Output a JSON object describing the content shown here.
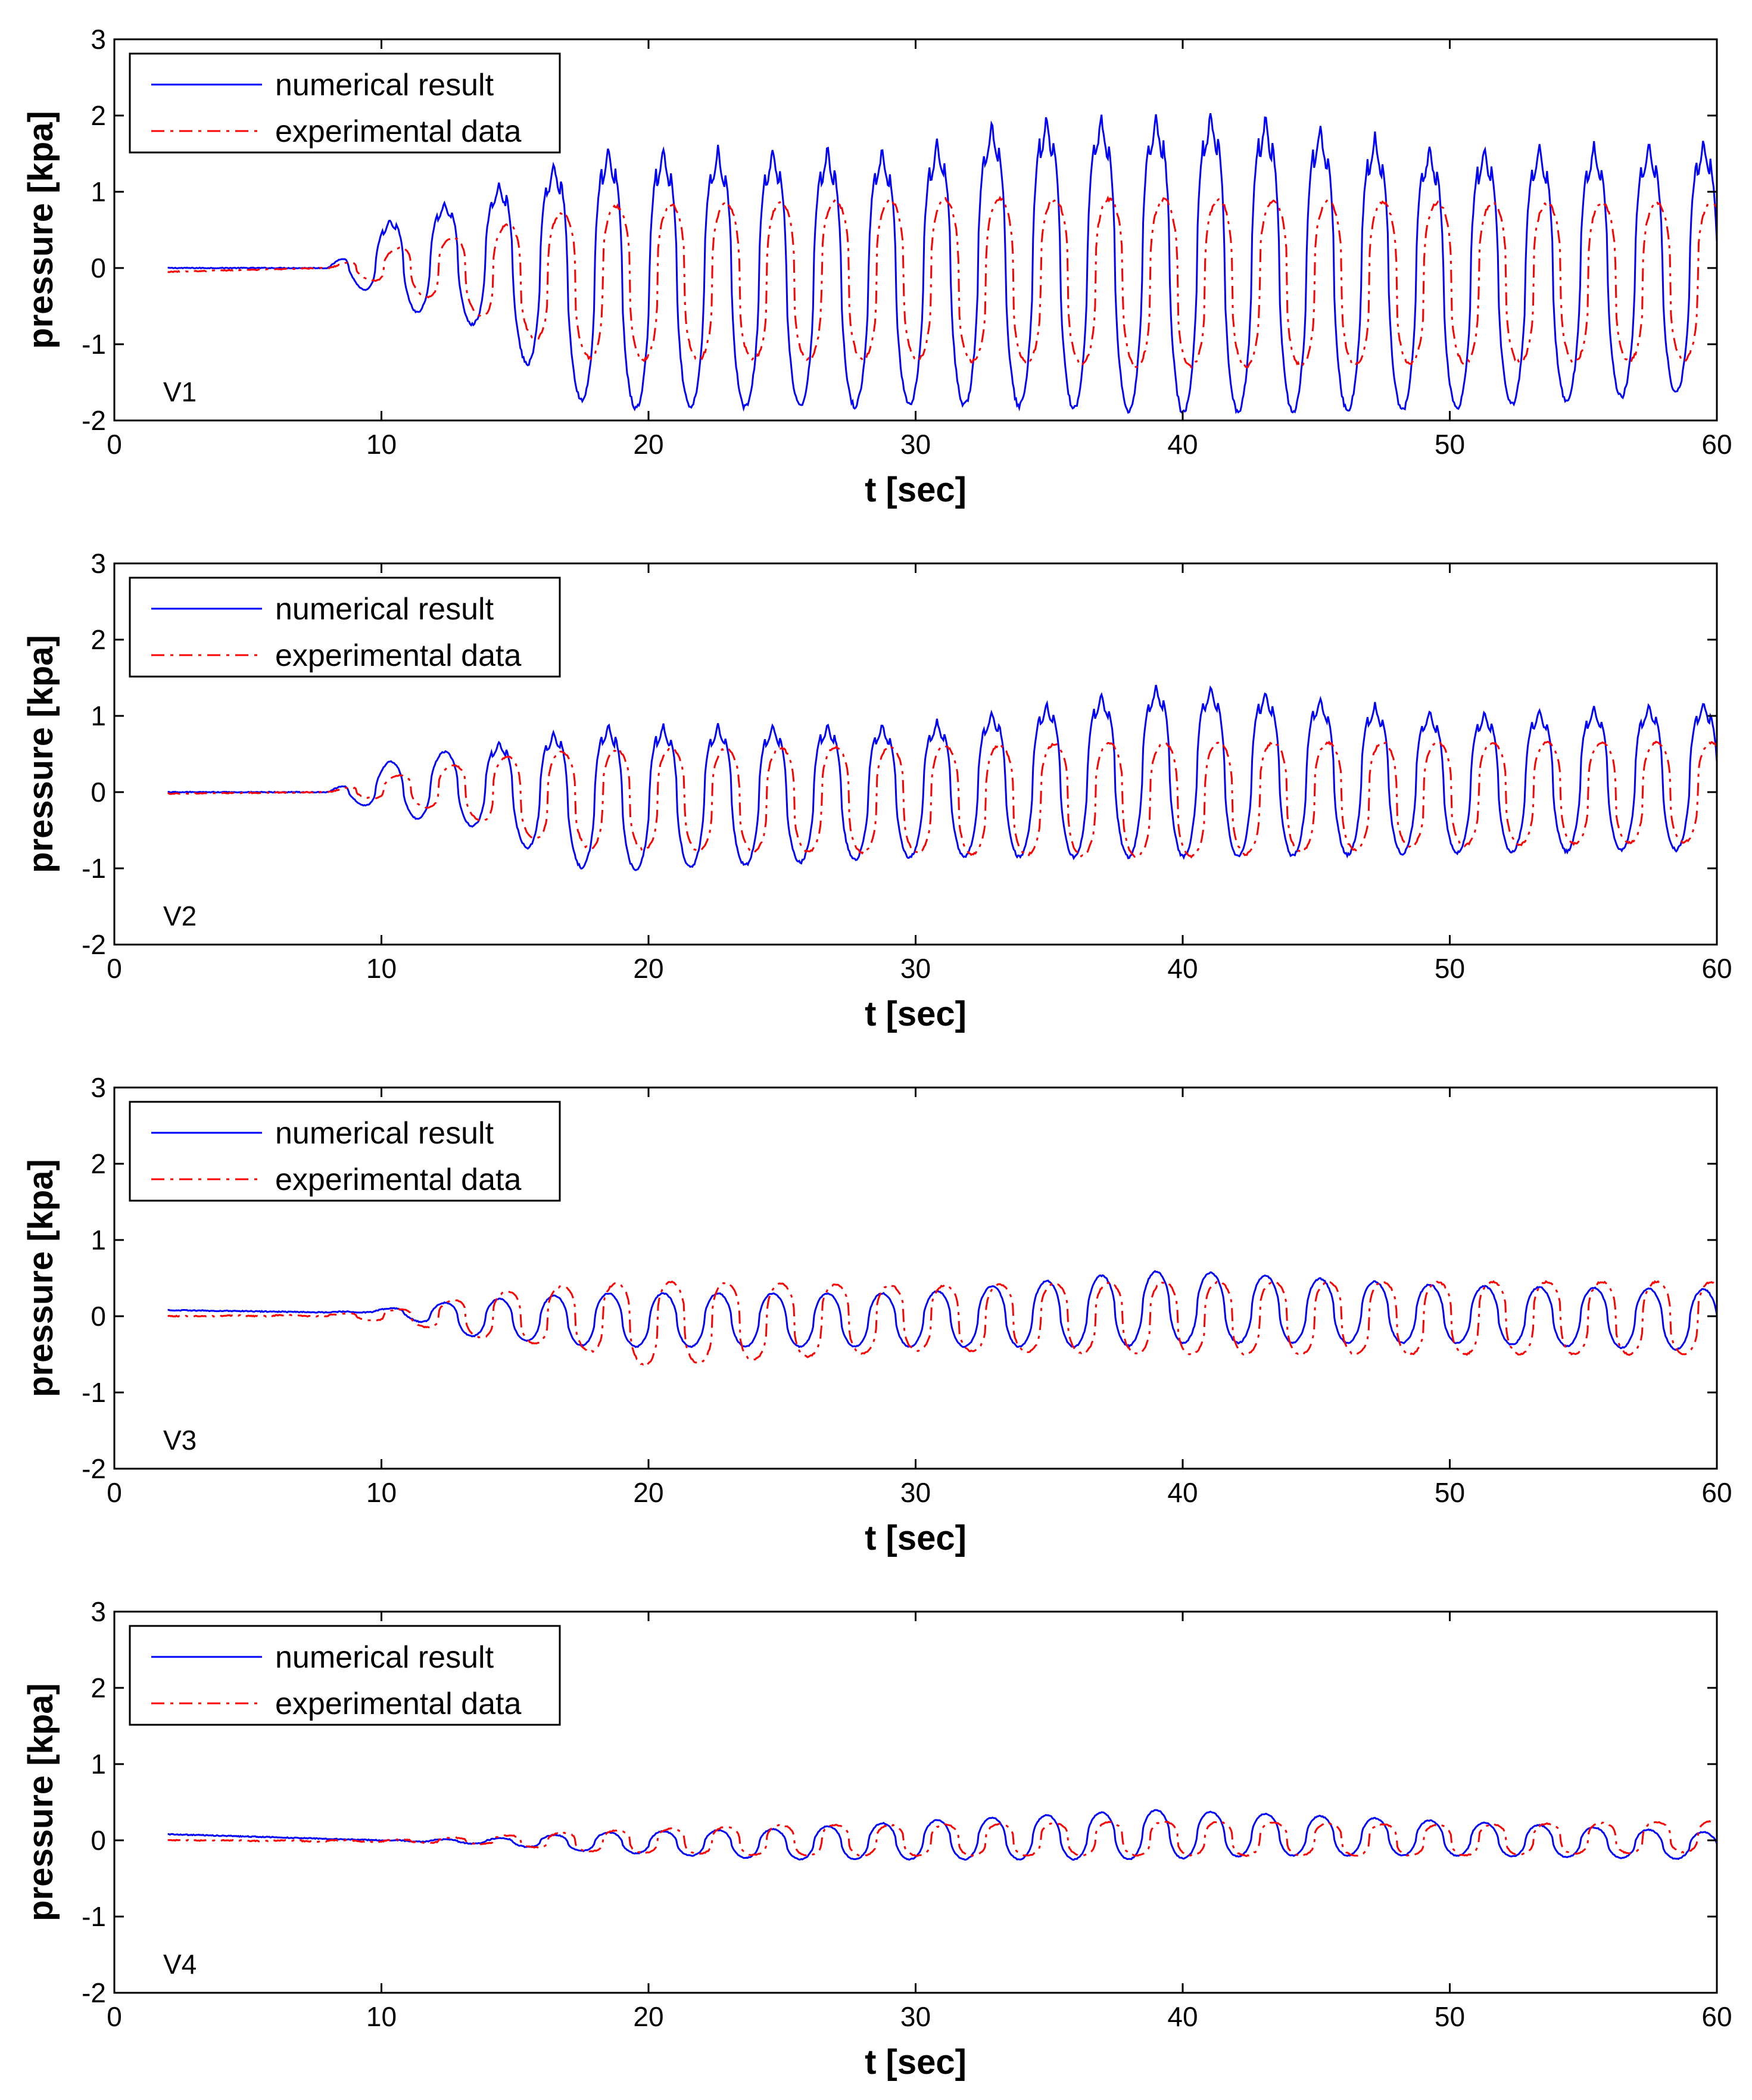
{
  "chart_data": [
    {
      "type": "line",
      "panel_label": "V1",
      "xlabel": "t [sec]",
      "ylabel": "pressure [kpa]",
      "xlim": [
        0,
        60
      ],
      "ylim": [
        -2,
        3
      ],
      "xticks": [
        0,
        10,
        20,
        30,
        40,
        50,
        60
      ],
      "yticks": [
        -2,
        -1,
        0,
        1,
        2,
        3
      ],
      "grid": false,
      "legend_position": "top-left",
      "series": [
        {
          "name": "numerical result",
          "color": "#0000ff",
          "style": "solid",
          "t_start": 2,
          "t_end": 60,
          "period_s": 2.05,
          "description_values": {
            "baseline_until_s": 8,
            "first_peak": 0.65,
            "peak_t": 10.3,
            "trough_after_first": -0.5,
            "second_peak": 1.0,
            "steady_peak_range": [
              1.4,
              2.1
            ],
            "steady_trough_range": [
              -1.8,
              -1.9
            ]
          },
          "envelope": [
            [
              2,
              0,
              0
            ],
            [
              8,
              0,
              0
            ],
            [
              10.3,
              0.65,
              -0.5
            ],
            [
              13.5,
              1.0,
              -0.75
            ],
            [
              15.6,
              1.3,
              -1.3
            ],
            [
              18,
              1.6,
              -1.85
            ],
            [
              30,
              1.6,
              -1.8
            ],
            [
              33.5,
              2.0,
              -1.8
            ],
            [
              39.5,
              2.05,
              -1.9
            ],
            [
              41.5,
              2.1,
              -1.9
            ],
            [
              50,
              1.6,
              -1.85
            ],
            [
              60,
              1.7,
              -1.6
            ]
          ]
        },
        {
          "name": "experimental data",
          "color": "#ff0000",
          "style": "dashdot",
          "t_start": 2,
          "t_end": 60,
          "period_s": 2.05,
          "envelope": [
            [
              2,
              -0.05,
              -0.05
            ],
            [
              8,
              0,
              0
            ],
            [
              11,
              0.3,
              -0.3
            ],
            [
              13.5,
              0.45,
              -0.6
            ],
            [
              15.5,
              0.65,
              -0.9
            ],
            [
              18,
              0.8,
              -1.2
            ],
            [
              30,
              0.9,
              -1.2
            ],
            [
              40,
              0.9,
              -1.3
            ],
            [
              50,
              0.85,
              -1.25
            ],
            [
              60,
              0.85,
              -1.2
            ]
          ]
        }
      ]
    },
    {
      "type": "line",
      "panel_label": "V2",
      "xlabel": "t [sec]",
      "ylabel": "pressure [kpa]",
      "xlim": [
        0,
        60
      ],
      "ylim": [
        -2,
        3
      ],
      "xticks": [
        0,
        10,
        20,
        30,
        40,
        50,
        60
      ],
      "yticks": [
        -2,
        -1,
        0,
        1,
        2,
        3
      ],
      "grid": false,
      "legend_position": "top-left",
      "series": [
        {
          "name": "numerical result",
          "color": "#0000ff",
          "style": "solid",
          "t_start": 2,
          "t_end": 60,
          "period_s": 2.05,
          "envelope": [
            [
              2,
              0,
              0
            ],
            [
              8,
              0,
              0
            ],
            [
              10.3,
              0.4,
              -0.3
            ],
            [
              13.5,
              0.6,
              -0.45
            ],
            [
              15.6,
              0.75,
              -0.75
            ],
            [
              18,
              0.9,
              -1.05
            ],
            [
              30,
              0.9,
              -0.85
            ],
            [
              39.5,
              1.45,
              -0.85
            ],
            [
              41.5,
              1.4,
              -0.85
            ],
            [
              50,
              1.05,
              -0.8
            ],
            [
              60,
              1.2,
              -0.75
            ]
          ]
        },
        {
          "name": "experimental data",
          "color": "#ff0000",
          "style": "dashdot",
          "t_start": 2,
          "t_end": 60,
          "period_s": 2.05,
          "envelope": [
            [
              2,
              -0.02,
              -0.02
            ],
            [
              8,
              0,
              0
            ],
            [
              11,
              0.25,
              -0.15
            ],
            [
              13.5,
              0.4,
              -0.35
            ],
            [
              15.5,
              0.5,
              -0.6
            ],
            [
              18,
              0.55,
              -0.75
            ],
            [
              30,
              0.6,
              -0.8
            ],
            [
              40,
              0.65,
              -0.85
            ],
            [
              50,
              0.65,
              -0.7
            ],
            [
              60,
              0.65,
              -0.65
            ]
          ]
        }
      ]
    },
    {
      "type": "line",
      "panel_label": "V3",
      "xlabel": "t [sec]",
      "ylabel": "pressure [kpa]",
      "xlim": [
        0,
        60
      ],
      "ylim": [
        -2,
        3
      ],
      "xticks": [
        0,
        10,
        20,
        30,
        40,
        50,
        60
      ],
      "yticks": [
        -2,
        -1,
        0,
        1,
        2,
        3
      ],
      "grid": false,
      "legend_position": "top-left",
      "series": [
        {
          "name": "numerical result",
          "color": "#0000ff",
          "style": "solid",
          "t_start": 2,
          "t_end": 60,
          "period_s": 2.05,
          "envelope": [
            [
              2,
              0.08,
              0.08
            ],
            [
              8,
              0.05,
              0.05
            ],
            [
              10.3,
              0.1,
              0.05
            ],
            [
              13,
              0.2,
              -0.25
            ],
            [
              18,
              0.3,
              -0.4
            ],
            [
              30,
              0.3,
              -0.4
            ],
            [
              37.5,
              0.55,
              -0.4
            ],
            [
              39.5,
              0.6,
              -0.35
            ],
            [
              50,
              0.4,
              -0.35
            ],
            [
              60,
              0.35,
              -0.45
            ]
          ]
        },
        {
          "name": "experimental data",
          "color": "#ff0000",
          "style": "dashdot",
          "t_start": 2,
          "t_end": 60,
          "period_s": 2.05,
          "envelope": [
            [
              2,
              0,
              0
            ],
            [
              8,
              0.02,
              0
            ],
            [
              11,
              0.1,
              -0.1
            ],
            [
              14,
              0.3,
              -0.3
            ],
            [
              17,
              0.4,
              -0.4
            ],
            [
              20,
              0.45,
              -0.65
            ],
            [
              30,
              0.4,
              -0.45
            ],
            [
              40,
              0.45,
              -0.5
            ],
            [
              50,
              0.45,
              -0.5
            ],
            [
              60,
              0.45,
              -0.5
            ]
          ]
        }
      ]
    },
    {
      "type": "line",
      "panel_label": "V4",
      "xlabel": "t [sec]",
      "ylabel": "pressure [kpa]",
      "xlim": [
        0,
        60
      ],
      "ylim": [
        -2,
        3
      ],
      "xticks": [
        0,
        10,
        20,
        30,
        40,
        50,
        60
      ],
      "yticks": [
        -2,
        -1,
        0,
        1,
        2,
        3
      ],
      "grid": false,
      "legend_position": "top-left",
      "series": [
        {
          "name": "numerical result",
          "color": "#0000ff",
          "style": "solid",
          "t_start": 2,
          "t_end": 60,
          "period_s": 2.05,
          "envelope": [
            [
              2,
              0.08,
              0.08
            ],
            [
              10,
              0,
              0
            ],
            [
              14,
              0.02,
              -0.05
            ],
            [
              18,
              0.1,
              -0.15
            ],
            [
              25,
              0.15,
              -0.25
            ],
            [
              30,
              0.25,
              -0.25
            ],
            [
              39,
              0.4,
              -0.25
            ],
            [
              43,
              0.35,
              -0.2
            ],
            [
              50,
              0.25,
              -0.2
            ],
            [
              60,
              0.1,
              -0.25
            ]
          ]
        },
        {
          "name": "experimental data",
          "color": "#ff0000",
          "style": "dashdot",
          "t_start": 2,
          "t_end": 60,
          "period_s": 2.05,
          "envelope": [
            [
              2,
              0,
              0
            ],
            [
              10,
              0,
              -0.02
            ],
            [
              14,
              0.05,
              -0.05
            ],
            [
              18,
              0.12,
              -0.15
            ],
            [
              25,
              0.2,
              -0.2
            ],
            [
              30,
              0.2,
              -0.2
            ],
            [
              40,
              0.25,
              -0.2
            ],
            [
              50,
              0.2,
              -0.2
            ],
            [
              60,
              0.25,
              -0.15
            ]
          ]
        }
      ]
    }
  ]
}
